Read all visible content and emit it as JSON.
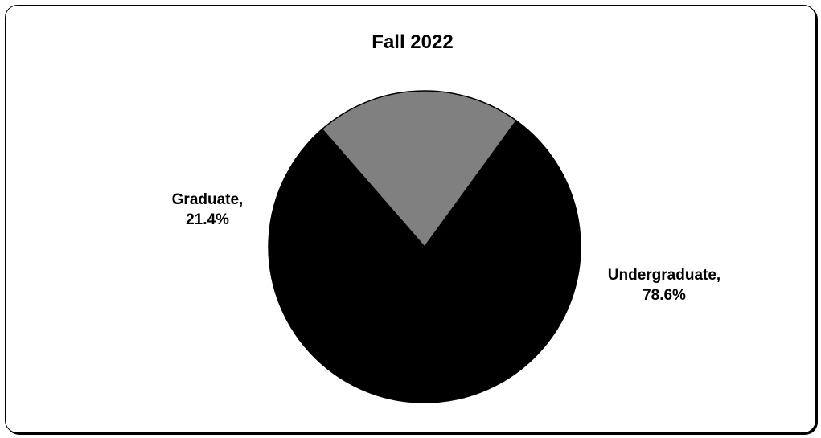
{
  "chart_data": {
    "type": "pie",
    "title": "Fall 2022",
    "slices": [
      {
        "label": "Undergraduate",
        "value": 78.6,
        "display": "78.6%",
        "color": "#000000"
      },
      {
        "label": "Graduate",
        "value": 21.4,
        "display": "21.4%",
        "color": "#808080"
      }
    ],
    "start_angle_deg": 36,
    "direction": "clockwise",
    "slice_border_color": "#000000",
    "legend": "none"
  }
}
